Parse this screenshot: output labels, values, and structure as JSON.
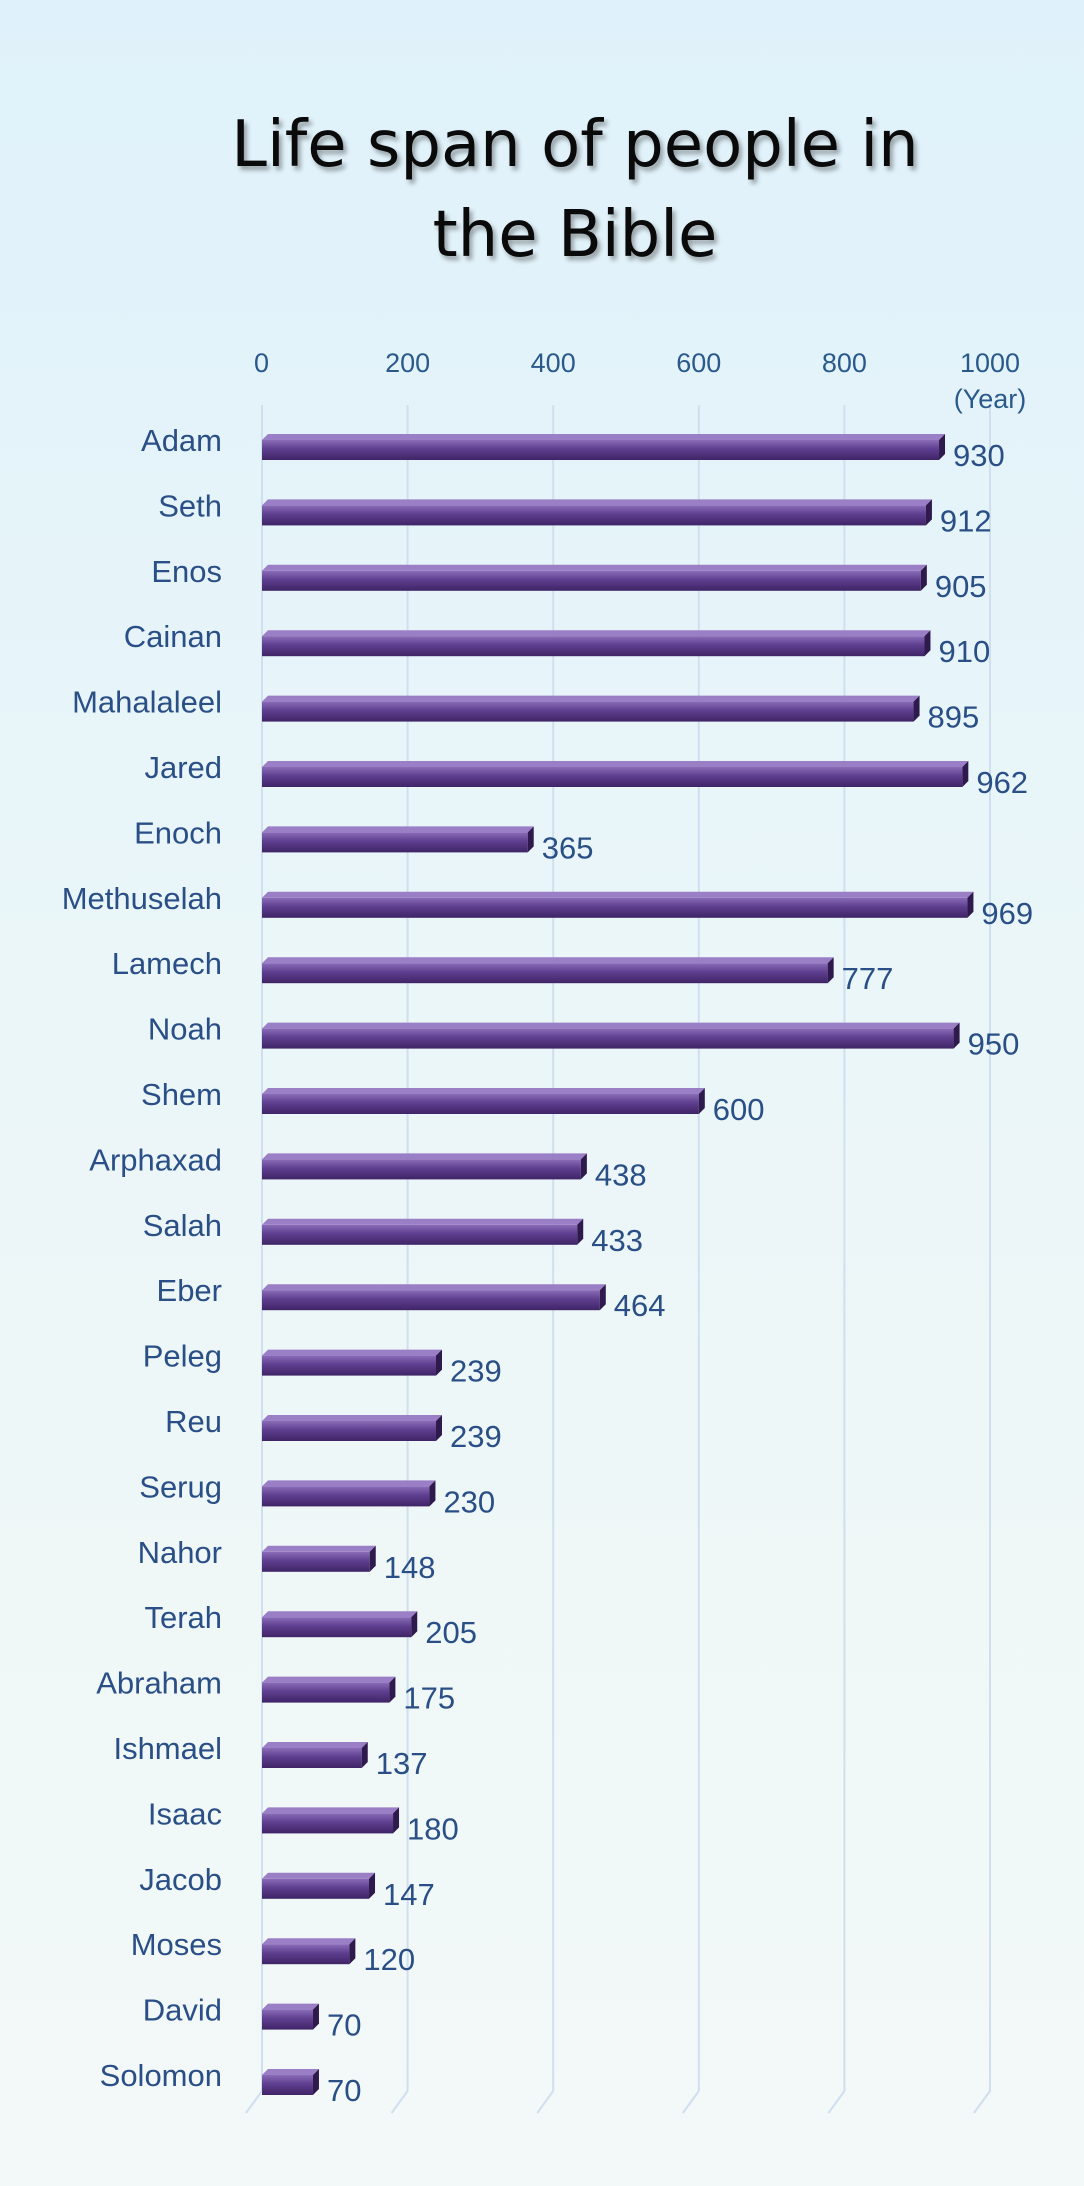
{
  "chart_data": {
    "type": "bar",
    "orientation": "horizontal",
    "title": "Life span of people in the Bible",
    "x_unit": "(Year)",
    "xlim": [
      0,
      1000
    ],
    "x_ticks": [
      "0",
      "200",
      "400",
      "600",
      "800",
      "1000"
    ],
    "grid": "vertical",
    "bar_color": "#5b3a8a",
    "label_color": "#2a4f86",
    "categories": [
      "Adam",
      "Seth",
      "Enos",
      "Cainan",
      "Mahalaleel",
      "Jared",
      "Enoch",
      "Methuselah",
      "Lamech",
      "Noah",
      "Shem",
      "Arphaxad",
      "Salah",
      "Eber",
      "Peleg",
      "Reu",
      "Serug",
      "Nahor",
      "Terah",
      "Abraham",
      "Ishmael",
      "Isaac",
      "Jacob",
      "Moses",
      "David",
      "Solomon"
    ],
    "values": [
      930,
      912,
      905,
      910,
      895,
      962,
      365,
      969,
      777,
      950,
      600,
      438,
      433,
      464,
      239,
      239,
      230,
      148,
      205,
      175,
      137,
      180,
      147,
      120,
      70,
      70
    ]
  }
}
